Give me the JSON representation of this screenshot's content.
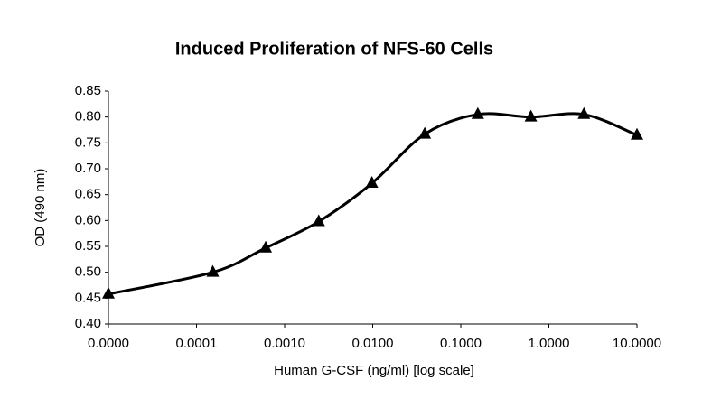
{
  "chart_data": {
    "type": "line",
    "title": "Induced Proliferation of NFS-60 Cells",
    "xlabel": "Human G-CSF (ng/ml) [log scale]",
    "ylabel": "OD (490 nm)",
    "x": [
      1e-05,
      0.000153,
      0.00061,
      0.00244,
      0.0098,
      0.039,
      0.156,
      0.625,
      2.5,
      10
    ],
    "values": [
      0.458,
      0.5,
      0.547,
      0.598,
      0.672,
      0.767,
      0.805,
      0.8,
      0.805,
      0.765
    ],
    "color": "#000000",
    "xscale": "log",
    "xlim": [
      1e-05,
      10
    ],
    "xticks": [
      {
        "value": 1e-05,
        "label": "0.0000"
      },
      0.0001,
      {
        "value": 0.001,
        "label": "0.0010"
      },
      {
        "value": 0.01,
        "label": "0.0100"
      },
      {
        "value": 0.1,
        "label": "0.1000"
      },
      {
        "value": 1,
        "label": "1.0000"
      },
      {
        "value": 10,
        "label": "10.0000"
      }
    ],
    "ylim": [
      0.4,
      0.85
    ],
    "yticks": [
      {
        "value": 0.4,
        "label": "0.40"
      },
      0.45,
      {
        "value": 0.5,
        "label": "0.50"
      },
      0.55,
      {
        "value": 0.6,
        "label": "0.60"
      },
      0.65,
      {
        "value": 0.7,
        "label": "0.70"
      },
      0.75,
      {
        "value": 0.8,
        "label": "0.80"
      },
      0.85
    ],
    "grid": false
  }
}
